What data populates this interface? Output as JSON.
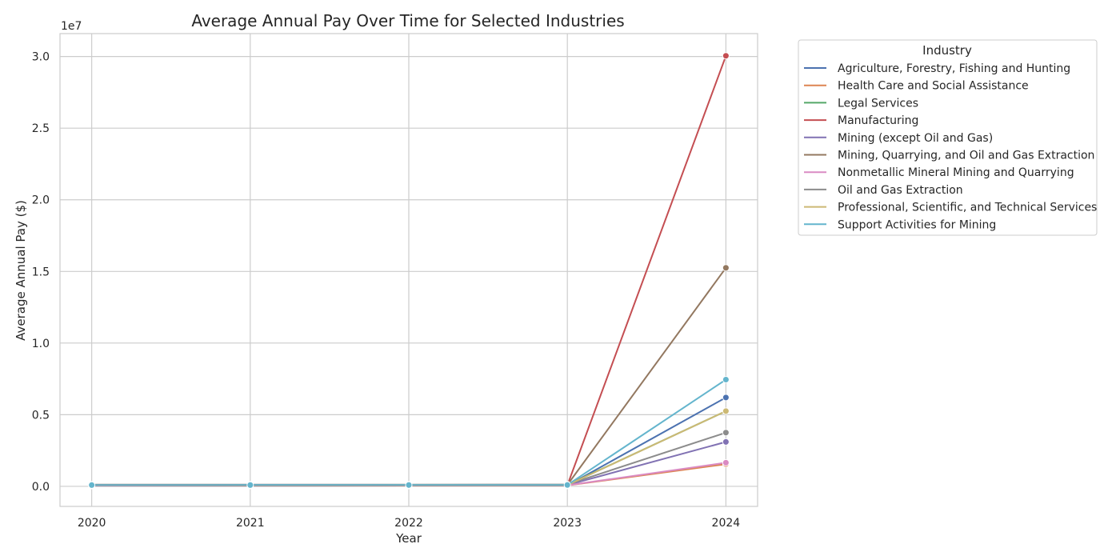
{
  "chart_data": {
    "type": "line",
    "title": "Average Annual Pay Over Time for Selected Industries",
    "xlabel": "Year",
    "ylabel": "Average Annual Pay ($)",
    "y_offset_label": "1e7",
    "x": [
      2020,
      2021,
      2022,
      2023,
      2024
    ],
    "x_tick_labels": [
      "2020",
      "2021",
      "2022",
      "2023",
      "2024"
    ],
    "y_ticks": [
      0,
      5000000,
      10000000,
      15000000,
      20000000,
      25000000,
      30000000
    ],
    "y_tick_labels": [
      "0.0",
      "0.5",
      "1.0",
      "1.5",
      "2.0",
      "2.5",
      "3.0"
    ],
    "xlim": [
      2019.8,
      2024.2
    ],
    "ylim": [
      -1400000,
      31600000
    ],
    "grid": true,
    "legend_title": "Industry",
    "legend_position": "outside-right-top",
    "series": [
      {
        "name": "Agriculture, Forestry, Fishing and Hunting",
        "color": "#4c72b0",
        "values": [
          45000,
          47000,
          49000,
          52000,
          6200000
        ]
      },
      {
        "name": "Health Care and Social Assistance",
        "color": "#dd8452",
        "values": [
          55000,
          57000,
          59000,
          61000,
          1550000
        ]
      },
      {
        "name": "Legal Services",
        "color": "#55a868",
        "values": [
          90000,
          92000,
          95000,
          98000,
          5250000
        ]
      },
      {
        "name": "Manufacturing",
        "color": "#c44e52",
        "values": [
          65000,
          67000,
          69000,
          72000,
          30050000
        ]
      },
      {
        "name": "Mining (except Oil and Gas)",
        "color": "#8172b3",
        "values": [
          85000,
          87000,
          89000,
          92000,
          3100000
        ]
      },
      {
        "name": "Mining, Quarrying, and Oil and Gas Extraction",
        "color": "#937860",
        "values": [
          95000,
          97000,
          99000,
          102000,
          15250000
        ]
      },
      {
        "name": "Nonmetallic Mineral Mining and Quarrying",
        "color": "#da8bc3",
        "values": [
          70000,
          72000,
          74000,
          76000,
          1650000
        ]
      },
      {
        "name": "Oil and Gas Extraction",
        "color": "#8c8c8c",
        "values": [
          120000,
          122000,
          125000,
          128000,
          3750000
        ]
      },
      {
        "name": "Professional, Scientific, and Technical Services",
        "color": "#ccb974",
        "values": [
          80000,
          82000,
          84000,
          86000,
          5250000
        ]
      },
      {
        "name": "Support Activities for Mining",
        "color": "#64b5cd",
        "values": [
          88000,
          90000,
          92000,
          95000,
          7450000
        ]
      }
    ]
  }
}
